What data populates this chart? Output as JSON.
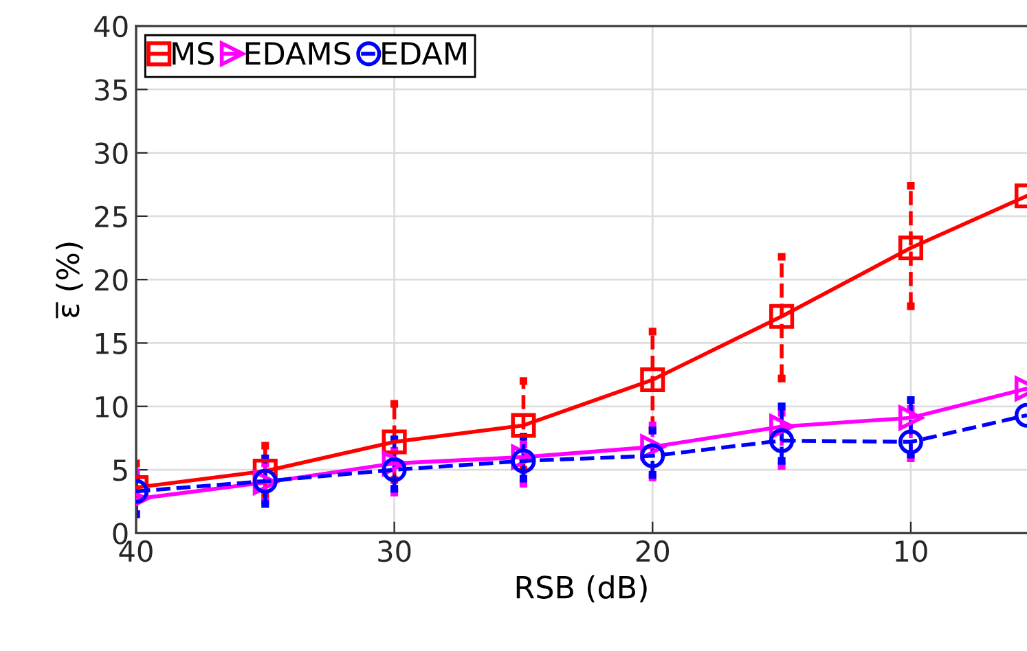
{
  "chart_data": {
    "type": "line",
    "xlabel": "RSB (dB)",
    "ylabel": "ε̅ (%)",
    "x": [
      40,
      35,
      30,
      25,
      20,
      15,
      10,
      5.5
    ],
    "xlim": [
      40,
      5.5
    ],
    "xticks": [
      40,
      30,
      20,
      10
    ],
    "ylim": [
      0,
      40
    ],
    "yticks": [
      0,
      5,
      10,
      15,
      20,
      25,
      30,
      35,
      40
    ],
    "grid": true,
    "legend": "top left",
    "series": [
      {
        "name": "MS",
        "color": "#ff0000",
        "marker": "square",
        "line_style": "solid",
        "values": [
          3.6,
          4.9,
          7.2,
          8.5,
          12.1,
          17.1,
          22.5,
          26.6
        ],
        "errors": [
          [
            1.5,
            5.5
          ],
          [
            2.9,
            6.9
          ],
          [
            4.2,
            10.2
          ],
          [
            5.0,
            12.0
          ],
          [
            8.1,
            15.9
          ],
          [
            12.2,
            21.8
          ],
          [
            17.9,
            27.4
          ],
          null
        ]
      },
      {
        "name": "EDAMS",
        "color": "#ff00ff",
        "marker": "triangle",
        "line_style": "solid",
        "values": [
          2.7,
          4.0,
          5.5,
          6.0,
          6.8,
          8.4,
          9.1,
          11.4
        ],
        "errors": [
          [
            1.5,
            4.8
          ],
          [
            2.5,
            5.5
          ],
          [
            3.2,
            6.5
          ],
          [
            3.9,
            7.0
          ],
          [
            4.4,
            8.5
          ],
          [
            5.3,
            9.5
          ],
          [
            5.9,
            9.8
          ],
          null
        ]
      },
      {
        "name": "EDAM",
        "color": "#0000ff",
        "marker": "circle",
        "line_style": "dashed",
        "values": [
          3.3,
          4.1,
          5.0,
          5.7,
          6.1,
          7.3,
          7.2,
          9.3
        ],
        "errors": [
          [
            1.5,
            4.3
          ],
          [
            2.3,
            5.9
          ],
          [
            3.5,
            7.4
          ],
          [
            4.3,
            7.6
          ],
          [
            4.6,
            8.1
          ],
          [
            5.7,
            10.0
          ],
          [
            6.2,
            10.5
          ],
          null
        ]
      }
    ]
  }
}
